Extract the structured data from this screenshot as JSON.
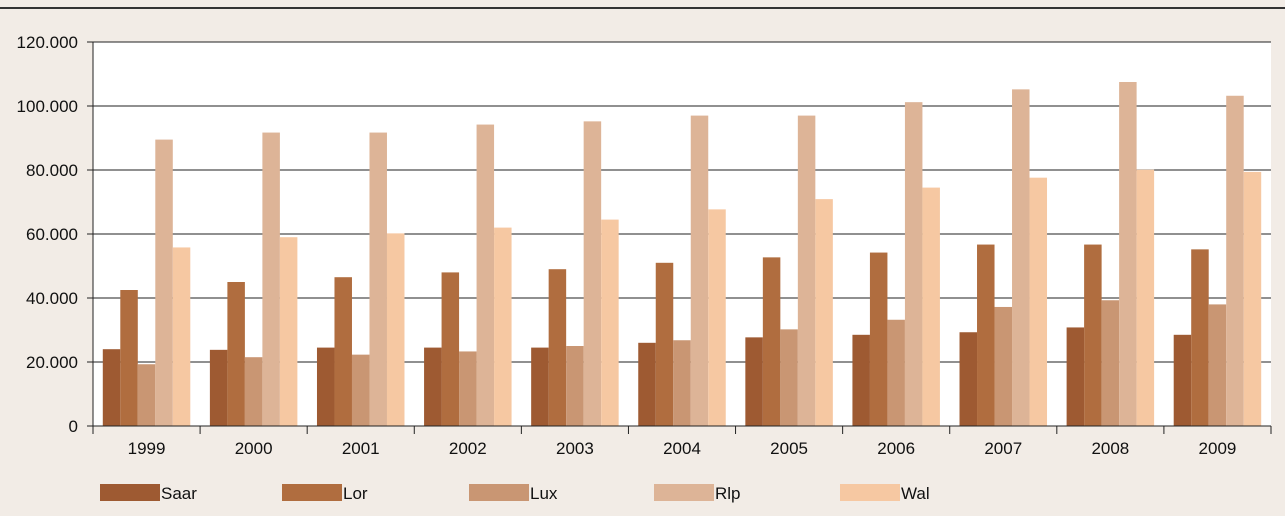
{
  "chart_data": {
    "type": "bar",
    "categories": [
      "1999",
      "2000",
      "2001",
      "2002",
      "2003",
      "2004",
      "2005",
      "2006",
      "2007",
      "2008",
      "2009"
    ],
    "series": [
      {
        "name": "Saar",
        "color": "#9e5a32",
        "values": [
          24000,
          23800,
          24500,
          24500,
          24500,
          26000,
          27700,
          28500,
          29300,
          30800,
          28500
        ]
      },
      {
        "name": "Lor",
        "color": "#b06d3f",
        "values": [
          42500,
          45000,
          46500,
          48000,
          49000,
          51000,
          52700,
          54200,
          56700,
          56700,
          55200
        ]
      },
      {
        "name": "Lux",
        "color": "#c99673",
        "values": [
          19300,
          21500,
          22300,
          23300,
          25000,
          26800,
          30200,
          33200,
          37200,
          39300,
          38000
        ]
      },
      {
        "name": "Rlp",
        "color": "#ddb497",
        "values": [
          89500,
          91700,
          91700,
          94200,
          95200,
          97000,
          97000,
          101200,
          105200,
          107500,
          103200
        ]
      },
      {
        "name": "Wal",
        "color": "#f6c8a2",
        "values": [
          55800,
          59000,
          60200,
          62000,
          64500,
          67700,
          70900,
          74500,
          77600,
          80100,
          79400
        ]
      }
    ],
    "yticks": [
      "0",
      "20.000",
      "40.000",
      "60.000",
      "80.000",
      "100.000",
      "120.000"
    ],
    "ylim": [
      0,
      120000
    ],
    "grid": true,
    "legend_position": "bottom"
  }
}
